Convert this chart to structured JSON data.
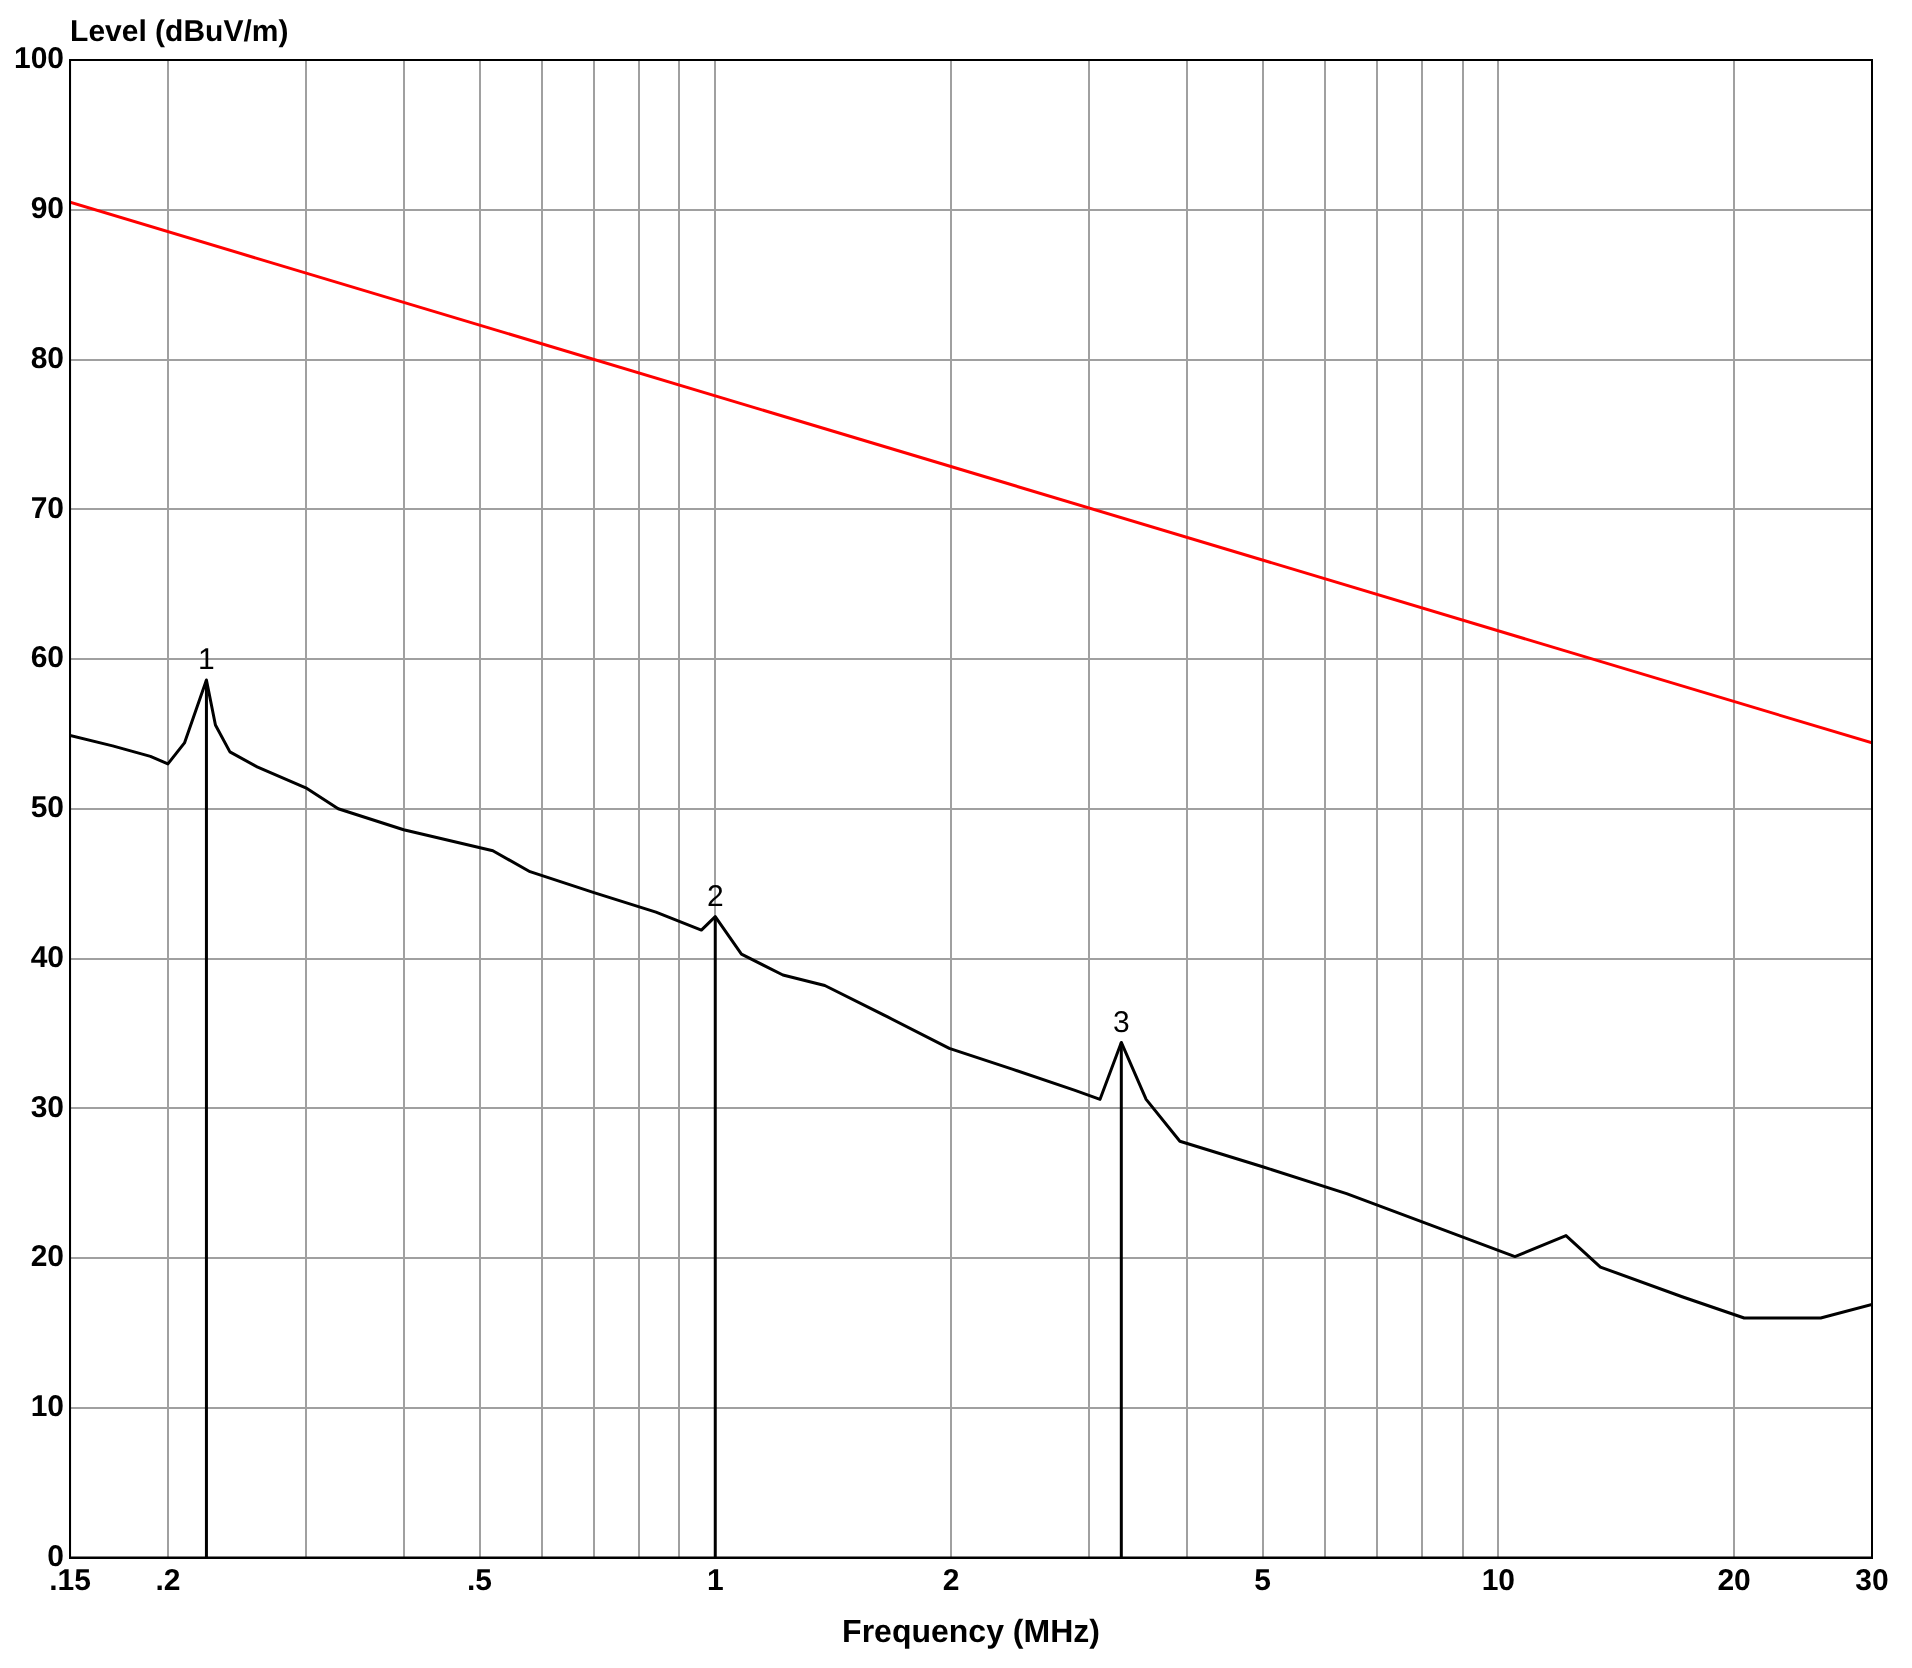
{
  "chart_data": {
    "type": "line",
    "xlabel": "Frequency (MHz)",
    "ylabel": "Level (dBuV/m)",
    "log": "x",
    "grid": true,
    "legend": false,
    "marker": "none",
    "line_style": "solid",
    "xlim": [
      0.15,
      30
    ],
    "ylim": [
      0,
      100
    ],
    "xticks": [
      {
        "value": 0.15,
        "label": ".15"
      },
      {
        "value": 0.2,
        "label": ".2"
      },
      {
        "value": 0.3,
        "label": null
      },
      {
        "value": 0.4,
        "label": null
      },
      {
        "value": 0.5,
        "label": ".5"
      },
      {
        "value": 0.6,
        "label": null
      },
      {
        "value": 0.7,
        "label": null
      },
      {
        "value": 0.8,
        "label": null
      },
      {
        "value": 0.9,
        "label": null
      },
      1,
      2,
      {
        "value": 3,
        "label": null
      },
      {
        "value": 4,
        "label": null
      },
      5,
      {
        "value": 6,
        "label": null
      },
      {
        "value": 7,
        "label": null
      },
      {
        "value": 8,
        "label": null
      },
      {
        "value": 9,
        "label": null
      },
      10,
      20,
      30
    ],
    "yticks": [
      0,
      10,
      20,
      30,
      40,
      50,
      60,
      70,
      80,
      90,
      100
    ],
    "series": [
      {
        "color": "#ff0000",
        "x": [
          0.15,
          30
        ],
        "values": [
          90.5,
          54.4
        ]
      },
      {
        "color": "#000000",
        "x": [
          0.15,
          0.17,
          0.19,
          0.2,
          0.21,
          0.224,
          0.23,
          0.24,
          0.26,
          0.3,
          0.33,
          0.4,
          0.52,
          0.58,
          0.7,
          0.84,
          0.96,
          1.0,
          1.08,
          1.22,
          1.38,
          1.66,
          1.99,
          2.4,
          2.88,
          3.1,
          3.3,
          3.55,
          3.92,
          5,
          6.4,
          8.2,
          10.5,
          12.2,
          13.5,
          17.2,
          20.6,
          25.8,
          30
        ],
        "values": [
          54.9,
          54.2,
          53.5,
          53,
          54.4,
          58.6,
          55.6,
          53.8,
          52.8,
          51.4,
          50,
          48.6,
          47.2,
          45.8,
          44.4,
          43.1,
          41.9,
          42.8,
          40.3,
          38.9,
          38.2,
          36.1,
          34,
          32.6,
          31.2,
          30.6,
          34.4,
          30.6,
          27.8,
          26.1,
          24.3,
          22.2,
          20.1,
          21.5,
          19.4,
          17.4,
          16,
          16,
          16.9
        ]
      }
    ],
    "annotations": [
      {
        "text": "1",
        "x": 0.224,
        "y": 58.6
      },
      {
        "text": "2",
        "x": 1.0,
        "y": 42.8
      },
      {
        "text": "3",
        "x": 3.3,
        "y": 34.4
      }
    ]
  }
}
